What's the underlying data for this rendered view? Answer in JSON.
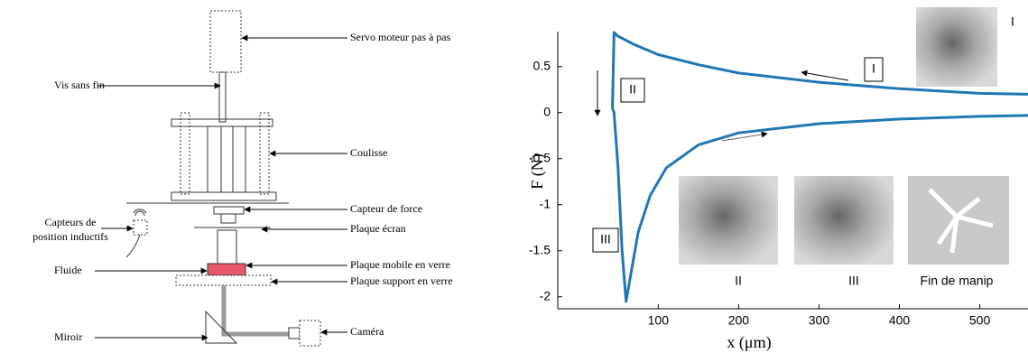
{
  "diagram": {
    "labels": {
      "servo": "Servo moteur pas à pas",
      "screw": "Vis sans fin",
      "slide": "Coulisse",
      "force_sensor": "Capteur de force",
      "sensors": [
        "Capteurs de",
        "position inductifs"
      ],
      "screen_plate": "Plaque écran",
      "fluid": "Fluide",
      "mobile_plate": "Plaque mobile en verre",
      "support_plate": "Plaque support en verre",
      "mirror": "Miroir",
      "camera": "Caméra"
    }
  },
  "chart_data": {
    "type": "line",
    "ylabel": "F (N)",
    "xlabel": "x (μm)",
    "xlim": [
      -25,
      560
    ],
    "ylim": [
      -2.13,
      0.88
    ],
    "xticks": [
      100,
      200,
      300,
      400,
      500
    ],
    "yticks": [
      0.5,
      0,
      -0.5,
      -1,
      -1.5,
      -2
    ],
    "series": [
      {
        "color": "#1f77b4",
        "x": [
          560,
          500,
          400,
          300,
          200,
          150,
          100,
          70,
          50,
          45,
          43,
          45,
          50,
          55,
          60,
          65,
          75,
          90,
          110,
          150,
          200,
          300,
          400,
          500,
          560
        ],
        "values": [
          0.2,
          0.21,
          0.26,
          0.33,
          0.43,
          0.52,
          0.63,
          0.74,
          0.83,
          0.87,
          0.05,
          0,
          -0.6,
          -1.5,
          -2.05,
          -1.8,
          -1.3,
          -0.9,
          -0.6,
          -0.35,
          -0.22,
          -0.12,
          -0.07,
          -0.04,
          -0.03
        ]
      }
    ],
    "annotations": [
      "I",
      "II",
      "III"
    ],
    "insets": [
      "I",
      "II",
      "III",
      "Fin de manip"
    ]
  }
}
